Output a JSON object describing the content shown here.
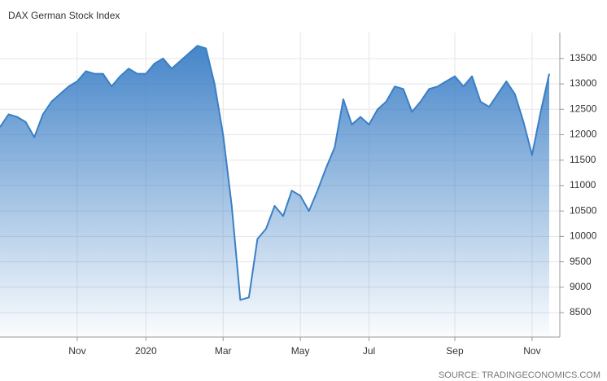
{
  "chart_data": {
    "type": "area",
    "title": "DAX German Stock Index",
    "source": "SOURCE: TRADINGECONOMICS.COM",
    "categories": [
      null,
      null,
      null,
      null,
      null,
      null,
      null,
      null,
      null,
      "Nov",
      null,
      null,
      null,
      null,
      null,
      null,
      null,
      "2020",
      null,
      null,
      null,
      null,
      null,
      null,
      null,
      null,
      "Mar",
      null,
      null,
      null,
      null,
      null,
      null,
      null,
      null,
      "May",
      null,
      null,
      null,
      null,
      null,
      null,
      null,
      "Jul",
      null,
      null,
      null,
      null,
      null,
      null,
      null,
      null,
      null,
      "Sep",
      null,
      null,
      null,
      null,
      null,
      null,
      null,
      null,
      "Nov",
      null,
      null
    ],
    "series": [
      {
        "name": "DAX",
        "color": "#3b7fc6",
        "values": [
          12150,
          12400,
          12350,
          12250,
          11950,
          12400,
          12650,
          12800,
          12950,
          13050,
          13250,
          13200,
          13200,
          12950,
          13150,
          13300,
          13200,
          13200,
          13400,
          13500,
          13300,
          13450,
          13600,
          13750,
          13700,
          13000,
          12000,
          10600,
          8750,
          8800,
          9950,
          10150,
          10600,
          10400,
          10900,
          10800,
          10500,
          10900,
          11350,
          11750,
          12700,
          12200,
          12350,
          12200,
          12500,
          12650,
          12950,
          12900,
          12450,
          12650,
          12900,
          12950,
          13050,
          13150,
          12950,
          13150,
          12650,
          12550,
          12800,
          13050,
          12800,
          12250,
          11600,
          12450,
          13200
        ]
      }
    ],
    "ylim": [
      8020,
      14010
    ],
    "yticks": [
      8500,
      9000,
      9500,
      10000,
      10500,
      11000,
      11500,
      12000,
      12500,
      13000,
      13500
    ],
    "grid": true
  }
}
